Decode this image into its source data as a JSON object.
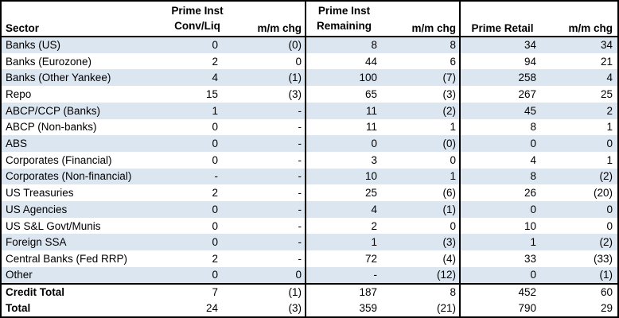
{
  "chart_data": {
    "type": "table",
    "columns": [
      "Sector",
      "Prime Inst Conv/Liq",
      "m/m chg",
      "Prime Inst Remaining",
      "m/m chg",
      "Prime Retail",
      "m/m chg"
    ],
    "rows": [
      [
        "Banks (US)",
        "0",
        "(0)",
        "8",
        "8",
        "34",
        "34"
      ],
      [
        "Banks (Eurozone)",
        "2",
        "0",
        "44",
        "6",
        "94",
        "21"
      ],
      [
        "Banks (Other Yankee)",
        "4",
        "(1)",
        "100",
        "(7)",
        "258",
        "4"
      ],
      [
        "Repo",
        "15",
        "(3)",
        "65",
        "(3)",
        "267",
        "25"
      ],
      [
        "ABCP/CCP (Banks)",
        "1",
        "-",
        "11",
        "(2)",
        "45",
        "2"
      ],
      [
        "ABCP (Non-banks)",
        "0",
        "-",
        "11",
        "1",
        "8",
        "1"
      ],
      [
        "ABS",
        "0",
        "-",
        "0",
        "(0)",
        "0",
        "0"
      ],
      [
        "Corporates (Financial)",
        "0",
        "-",
        "3",
        "0",
        "4",
        "1"
      ],
      [
        "Corporates (Non-financial)",
        "-",
        "-",
        "10",
        "1",
        "8",
        "(2)"
      ],
      [
        "US Treasuries",
        "2",
        "-",
        "25",
        "(6)",
        "26",
        "(20)"
      ],
      [
        "US Agencies",
        "0",
        "-",
        "4",
        "(1)",
        "0",
        "0"
      ],
      [
        "US S&L Govt/Munis",
        "0",
        "-",
        "2",
        "0",
        "10",
        "0"
      ],
      [
        "Foreign SSA",
        "0",
        "-",
        "1",
        "(3)",
        "1",
        "(2)"
      ],
      [
        "Central Banks (Fed RRP)",
        "2",
        "-",
        "72",
        "(4)",
        "33",
        "(33)"
      ],
      [
        "Other",
        "0",
        "0",
        "-",
        "(12)",
        "0",
        "(1)"
      ]
    ],
    "total_rows": [
      [
        "Credit Total",
        "7",
        "(1)",
        "187",
        "8",
        "452",
        "60"
      ],
      [
        "Total",
        "24",
        "(3)",
        "359",
        "(21)",
        "790",
        "29"
      ]
    ]
  },
  "header": {
    "sector": "Sector",
    "group1": "Prime Inst\nConv/Liq",
    "mm_chg": "m/m chg",
    "group2": "Prime Inst\nRemaining",
    "group3": "Prime Retail"
  },
  "styles": {
    "band_color": "#dce6f1",
    "border_color": "#000000",
    "text_color": "#000000",
    "background": "#ffffff"
  }
}
